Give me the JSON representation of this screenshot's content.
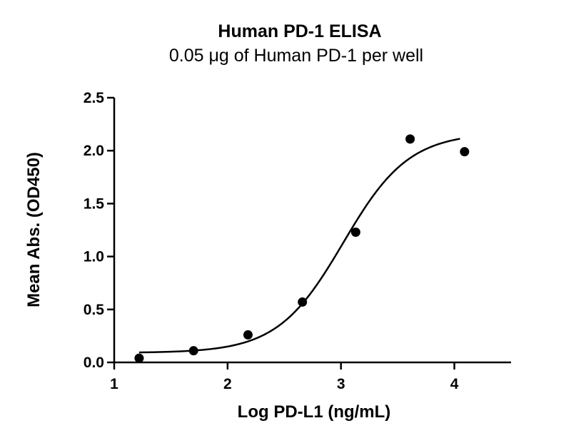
{
  "chart_data": {
    "type": "scatter",
    "title": "Human PD-1 ELISA",
    "subtitle": "0.05 μg of Human PD-1 per well",
    "xlabel": "Log PD-L1 (ng/mL)",
    "ylabel": "Mean  Abs. (OD450)",
    "xlim": [
      1,
      4.5
    ],
    "ylim": [
      0,
      2.5
    ],
    "x_ticks": [
      1,
      2,
      3,
      4
    ],
    "x_tick_labels": [
      "1",
      "2",
      "3",
      "4"
    ],
    "y_ticks": [
      0,
      0.5,
      1,
      1.5,
      2,
      2.5
    ],
    "y_tick_labels": [
      "0.0",
      "0.5",
      "1.0",
      "1.5",
      "2.0",
      "2.5"
    ],
    "grid": false,
    "series": [
      {
        "points": [
          {
            "x": 1.22,
            "y": 0.04
          },
          {
            "x": 1.7,
            "y": 0.11
          },
          {
            "x": 2.18,
            "y": 0.26
          },
          {
            "x": 2.66,
            "y": 0.57
          },
          {
            "x": 3.13,
            "y": 1.23
          },
          {
            "x": 3.61,
            "y": 2.11
          },
          {
            "x": 4.09,
            "y": 1.99
          }
        ],
        "color": "#000000"
      }
    ],
    "fit_curve": {
      "type": "four-parameter-logistic",
      "bottom": 0.09,
      "top": 2.17,
      "log_ec50": 3.02,
      "hill_slope": 1.5,
      "x_range": [
        1.22,
        4.05
      ],
      "color": "#000000"
    }
  }
}
